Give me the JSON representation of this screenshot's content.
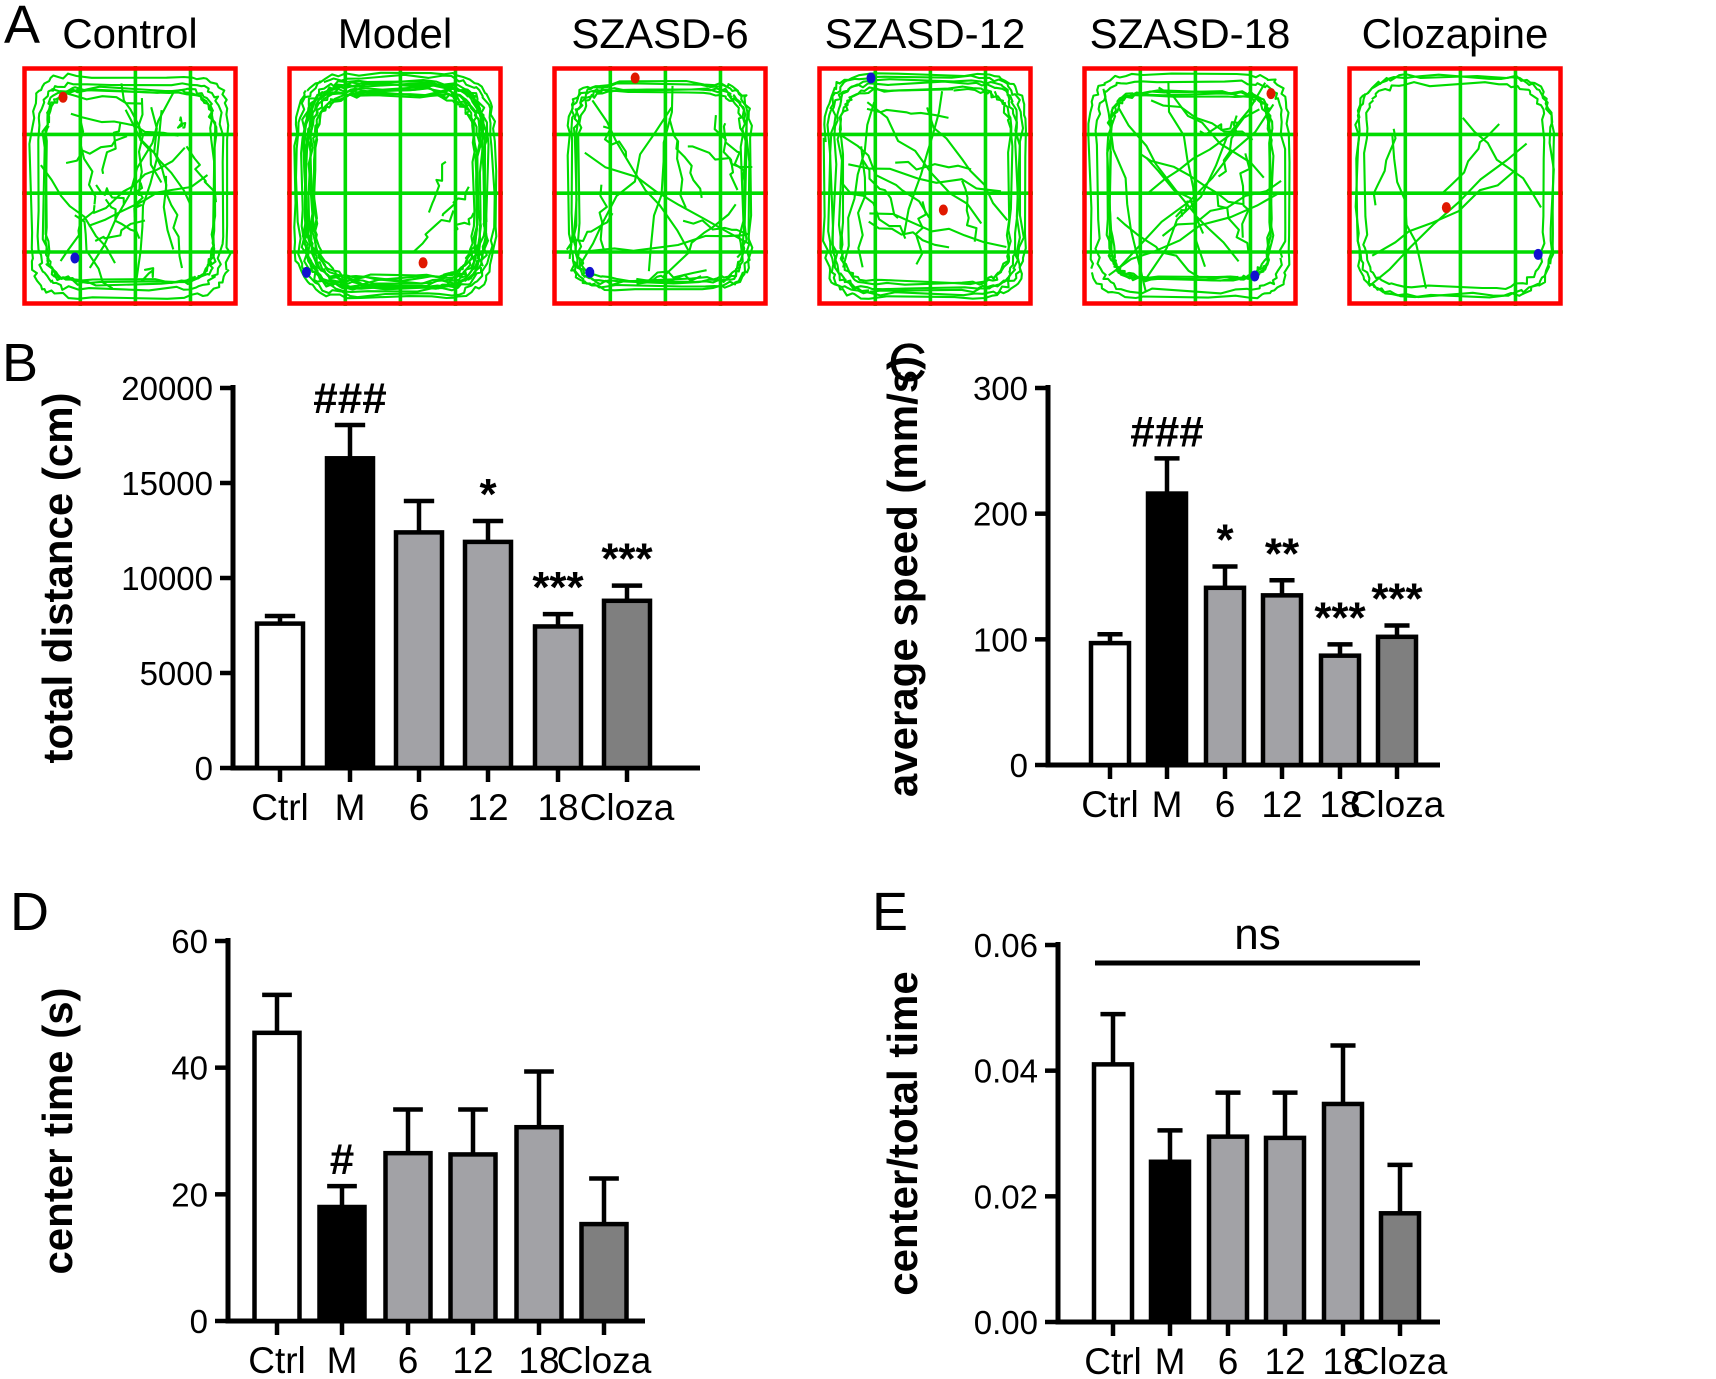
{
  "figure": {
    "panels": {
      "A": {
        "letter": "A",
        "items": [
          {
            "label": "Control",
            "seed": 7,
            "laps": 5,
            "lapInset": [
              9,
              30
            ],
            "roundness": 0.3,
            "chords": 24,
            "chordMode": "full",
            "red_dot": [
              0.19,
              0.13
            ],
            "blue_dot": [
              0.245,
              0.8
            ]
          },
          {
            "label": "Model",
            "seed": 13,
            "laps": 13,
            "lapInset": [
              7,
              34
            ],
            "roundness": 0.42,
            "chords": 4,
            "chordMode": "bottom",
            "red_dot": [
              0.63,
              0.82
            ],
            "blue_dot": [
              0.09,
              0.86
            ]
          },
          {
            "label": "SZASD-6",
            "seed": 21,
            "laps": 5,
            "lapInset": [
              9,
              28
            ],
            "roundness": 0.3,
            "chords": 17,
            "chordMode": "full",
            "red_dot": [
              0.385,
              0.05
            ],
            "blue_dot": [
              0.175,
              0.86
            ]
          },
          {
            "label": "SZASD-12",
            "seed": 31,
            "laps": 6,
            "lapInset": [
              8,
              30
            ],
            "roundness": 0.33,
            "chords": 15,
            "chordMode": "full",
            "red_dot": [
              0.585,
              0.6
            ],
            "blue_dot": [
              0.25,
              0.05
            ]
          },
          {
            "label": "SZASD-18",
            "seed": 41,
            "laps": 6,
            "lapInset": [
              8,
              30
            ],
            "roundness": 0.32,
            "chords": 18,
            "chordMode": "full",
            "red_dot": [
              0.875,
              0.115
            ],
            "blue_dot": [
              0.8,
              0.875
            ]
          },
          {
            "label": "Clozapine",
            "seed": 51,
            "laps": 3,
            "lapInset": [
              8,
              22
            ],
            "roundness": 0.38,
            "chords": 6,
            "chordMode": "full",
            "red_dot": [
              0.46,
              0.59
            ],
            "blue_dot": [
              0.885,
              0.785
            ]
          }
        ]
      },
      "B": {
        "letter": "B"
      },
      "C": {
        "letter": "C"
      },
      "D": {
        "letter": "D"
      },
      "E": {
        "letter": "E"
      }
    }
  },
  "chart_data": [
    {
      "panel": "B",
      "type": "bar",
      "categories": [
        "Ctrl",
        "M",
        "6",
        "12",
        "18",
        "Cloza"
      ],
      "values": [
        7600,
        16300,
        12400,
        11900,
        7450,
        8800
      ],
      "errors": [
        400,
        1750,
        1650,
        1100,
        650,
        800
      ],
      "annotations": [
        "",
        "###",
        "",
        "*",
        "***",
        "***"
      ],
      "bar_colors": [
        "white",
        "black",
        "light",
        "light",
        "light",
        "dark"
      ],
      "title": "",
      "xlabel": "",
      "ylabel": "total distance (cm)",
      "ylim": [
        0,
        20000
      ],
      "ytick_step": 5000,
      "yticks": [
        "0",
        "5000",
        "10000",
        "15000",
        "20000"
      ],
      "grid": false,
      "legend": "none"
    },
    {
      "panel": "C",
      "type": "bar",
      "categories": [
        "Ctrl",
        "M",
        "6",
        "12",
        "18",
        "Cloza"
      ],
      "values": [
        97,
        216,
        141,
        135,
        87,
        102
      ],
      "errors": [
        7,
        28,
        17,
        12,
        9,
        9
      ],
      "annotations": [
        "",
        "###",
        "*",
        "**",
        "***",
        "***"
      ],
      "bar_colors": [
        "white",
        "black",
        "light",
        "light",
        "light",
        "dark"
      ],
      "title": "",
      "xlabel": "",
      "ylabel": "average speed (mm/s)",
      "ylim": [
        0,
        300
      ],
      "ytick_step": 100,
      "yticks": [
        "0",
        "100",
        "200",
        "300"
      ],
      "grid": false,
      "legend": "none"
    },
    {
      "panel": "D",
      "type": "bar",
      "categories": [
        "Ctrl",
        "M",
        "6",
        "12",
        "18",
        "Cloza"
      ],
      "values": [
        45.5,
        18,
        26.5,
        26.3,
        30.6,
        15.3
      ],
      "errors": [
        6,
        3.3,
        6.9,
        7.1,
        8.8,
        7.2
      ],
      "annotations": [
        "",
        "#",
        "",
        "",
        "",
        ""
      ],
      "bar_colors": [
        "white",
        "black",
        "light",
        "light",
        "light",
        "dark"
      ],
      "title": "",
      "xlabel": "",
      "ylabel": "center time (s)",
      "ylim": [
        0,
        60
      ],
      "ytick_step": 20,
      "yticks": [
        "0",
        "20",
        "40",
        "60"
      ],
      "grid": false,
      "legend": "none"
    },
    {
      "panel": "E",
      "type": "bar",
      "categories": [
        "Ctrl",
        "M",
        "6",
        "12",
        "18",
        "Cloza"
      ],
      "values": [
        0.041,
        0.0255,
        0.0295,
        0.0293,
        0.0347,
        0.0173
      ],
      "errors": [
        0.008,
        0.005,
        0.007,
        0.0072,
        0.0093,
        0.0077
      ],
      "annotations": [
        "",
        "",
        "",
        "",
        "",
        ""
      ],
      "bar_colors": [
        "white",
        "black",
        "light",
        "light",
        "light",
        "dark"
      ],
      "title": "",
      "xlabel": "",
      "ylabel": "center/total time",
      "ylim": [
        0,
        0.06
      ],
      "ytick_step": 0.02,
      "yticks": [
        "0.00",
        "0.02",
        "0.04",
        "0.06"
      ],
      "ns_label": "ns",
      "grid": false,
      "legend": "none"
    }
  ],
  "colors": {
    "bar": {
      "white": "#ffffff",
      "black": "#000000",
      "light": "#a2a2a6",
      "dark": "#7f7f7f"
    },
    "axis": "#000000",
    "trace_green": "#00db00",
    "box_red": "#ff0000",
    "dot_red": "#e01800",
    "dot_blue": "#1212cf"
  }
}
